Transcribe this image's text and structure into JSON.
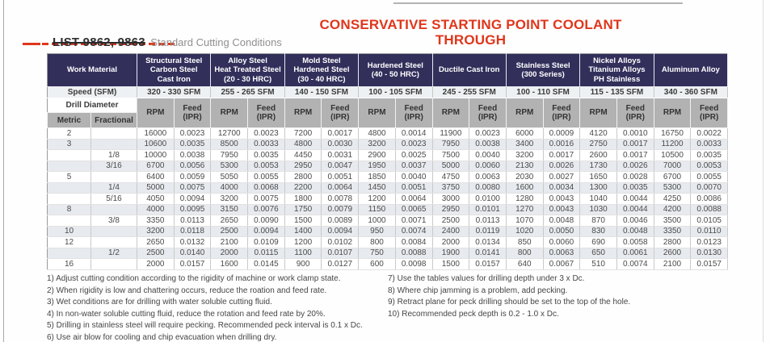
{
  "page": {
    "title_line1": "CONSERVATIVE STARTING POINT COOLANT",
    "title_line2": "THROUGH",
    "list_label": "LIST 9862, 9863",
    "subtitle": "Standard Cutting Conditions",
    "accent_red": "#e0361b",
    "header_navy": "#322f5b"
  },
  "table": {
    "work_material_label": "Work Material",
    "speed_label": "Speed (SFM)",
    "drill_diameter_label": "Drill Diameter",
    "metric_label": "Metric",
    "fractional_label": "Fractional",
    "rpm_label": "RPM",
    "feed_label": "Feed\n(IPR)",
    "groups": [
      {
        "name": "Structural Steel\nCarbon Steel\nCast Iron",
        "speed": "320 - 330 SFM"
      },
      {
        "name": "Alloy Steel\nHeat Treated Steel\n(20 - 30 HRC)",
        "speed": "255 - 265 SFM"
      },
      {
        "name": "Mold Steel\nHardened Steel\n(30 - 40 HRC)",
        "speed": "140 - 150 SFM"
      },
      {
        "name": "Hardened Steel\n(40 - 50 HRC)",
        "speed": "100 - 105 SFM"
      },
      {
        "name": "Ductile Cast Iron",
        "speed": "245 - 255 SFM"
      },
      {
        "name": "Stainless Steel\n(300 Series)",
        "speed": "100 - 110 SFM"
      },
      {
        "name": "Nickel Alloys\nTitanium Alloys\nPH Stainless",
        "speed": "115 - 135 SFM"
      },
      {
        "name": "Aluminum Alloy",
        "speed": "340 - 360 SFM"
      }
    ],
    "rows": [
      {
        "metric": "2",
        "fractional": "",
        "values": [
          "16000",
          "0.0023",
          "12700",
          "0.0023",
          "7200",
          "0.0017",
          "4800",
          "0.0014",
          "11900",
          "0.0023",
          "6000",
          "0.0009",
          "4120",
          "0.0010",
          "16750",
          "0.0022"
        ]
      },
      {
        "metric": "3",
        "fractional": "",
        "values": [
          "10600",
          "0.0035",
          "8500",
          "0.0033",
          "4800",
          "0.0030",
          "3200",
          "0.0023",
          "7950",
          "0.0038",
          "3400",
          "0.0016",
          "2750",
          "0.0017",
          "11200",
          "0.0033"
        ]
      },
      {
        "metric": "",
        "fractional": "1/8",
        "values": [
          "10000",
          "0.0038",
          "7950",
          "0.0035",
          "4450",
          "0.0031",
          "2900",
          "0.0025",
          "7500",
          "0.0040",
          "3200",
          "0.0017",
          "2600",
          "0.0017",
          "10500",
          "0.0035"
        ]
      },
      {
        "metric": "",
        "fractional": "3/16",
        "values": [
          "6700",
          "0.0056",
          "5300",
          "0.0053",
          "2950",
          "0.0047",
          "1950",
          "0.0037",
          "5000",
          "0.0060",
          "2130",
          "0.0026",
          "1730",
          "0.0026",
          "7000",
          "0.0053"
        ]
      },
      {
        "metric": "5",
        "fractional": "",
        "values": [
          "6400",
          "0.0059",
          "5050",
          "0.0055",
          "2800",
          "0.0051",
          "1850",
          "0.0040",
          "4750",
          "0.0063",
          "2030",
          "0.0027",
          "1650",
          "0.0028",
          "6700",
          "0.0055"
        ]
      },
      {
        "metric": "",
        "fractional": "1/4",
        "values": [
          "5000",
          "0.0075",
          "4000",
          "0.0068",
          "2200",
          "0.0064",
          "1450",
          "0.0051",
          "3750",
          "0.0080",
          "1600",
          "0.0034",
          "1300",
          "0.0035",
          "5300",
          "0.0070"
        ]
      },
      {
        "metric": "",
        "fractional": "5/16",
        "values": [
          "4050",
          "0.0094",
          "3200",
          "0.0075",
          "1800",
          "0.0078",
          "1200",
          "0.0064",
          "3000",
          "0.0100",
          "1280",
          "0.0043",
          "1040",
          "0.0044",
          "4250",
          "0.0086"
        ]
      },
      {
        "metric": "8",
        "fractional": "",
        "values": [
          "4000",
          "0.0095",
          "3150",
          "0.0076",
          "1750",
          "0.0079",
          "1150",
          "0.0065",
          "2950",
          "0.0101",
          "1270",
          "0.0043",
          "1030",
          "0.0044",
          "4200",
          "0.0088"
        ]
      },
      {
        "metric": "",
        "fractional": "3/8",
        "values": [
          "3350",
          "0.0113",
          "2650",
          "0.0090",
          "1500",
          "0.0089",
          "1000",
          "0.0071",
          "2500",
          "0.0113",
          "1070",
          "0.0048",
          "870",
          "0.0046",
          "3500",
          "0.0105"
        ]
      },
      {
        "metric": "10",
        "fractional": "",
        "values": [
          "3200",
          "0.0118",
          "2500",
          "0.0094",
          "1400",
          "0.0094",
          "950",
          "0.0074",
          "2400",
          "0.0119",
          "1020",
          "0.0050",
          "830",
          "0.0048",
          "3350",
          "0.0110"
        ]
      },
      {
        "metric": "12",
        "fractional": "",
        "values": [
          "2650",
          "0.0132",
          "2100",
          "0.0109",
          "1200",
          "0.0102",
          "800",
          "0.0084",
          "2000",
          "0.0134",
          "850",
          "0.0060",
          "690",
          "0.0058",
          "2800",
          "0.0123"
        ]
      },
      {
        "metric": "",
        "fractional": "1/2",
        "values": [
          "2500",
          "0.0140",
          "2000",
          "0.0115",
          "1100",
          "0.0107",
          "750",
          "0.0088",
          "1900",
          "0.0141",
          "800",
          "0.0063",
          "650",
          "0.0061",
          "2600",
          "0.0130"
        ]
      },
      {
        "metric": "16",
        "fractional": "",
        "values": [
          "2000",
          "0.0157",
          "1600",
          "0.0145",
          "900",
          "0.0127",
          "600",
          "0.0098",
          "1500",
          "0.0157",
          "640",
          "0.0067",
          "510",
          "0.0074",
          "2100",
          "0.0157"
        ]
      }
    ]
  },
  "notes_left": [
    "1) Adjust cutting condition according to the rigidity of machine or work clamp state.",
    "2) When rigidity is low and chattering occurs, reduce the roation and feed rate.",
    "3) Wet conditions are for drilling with water soluble cutting fluid.",
    "4) In non-water soluble cutting fluid, reduce the rotation and feed rate by 20%.",
    "5) Drilling in stainless steel will require pecking. Recommended peck interval is 0.1 x Dc.",
    "6) Use air blow for cooling and chip evacuation when drilling dry."
  ],
  "notes_right": [
    "7) Use the tables values for drilling depth under 3 x Dc.",
    "8) Where chip jamming is a problem, add pecking.",
    "9) Retract plane for peck drilling should be set to the top of the hole.",
    "10) Recommended peck depth is 0.2 - 1.0 x Dc."
  ]
}
